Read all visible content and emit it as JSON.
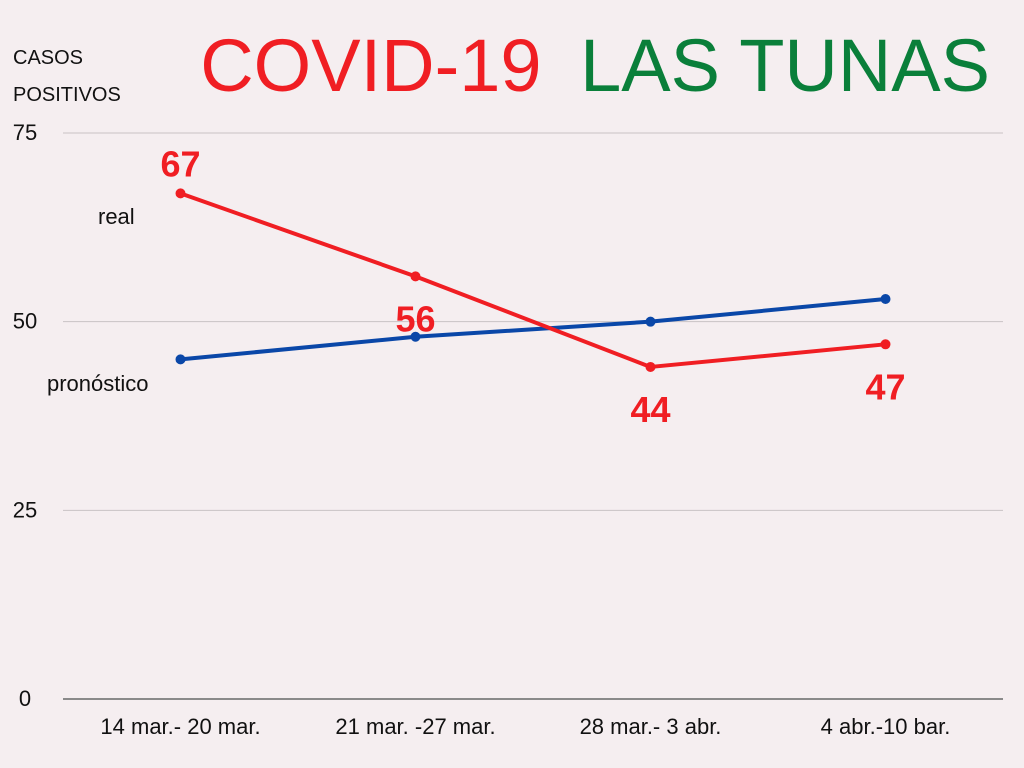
{
  "chart_data": {
    "type": "line",
    "title_part1": "COVID-19",
    "title_part2": "LAS TUNAS",
    "ylabel_line1": "CASOS",
    "ylabel_line2": "POSITIVOS",
    "categories": [
      "14 mar.- 20 mar.",
      "21 mar. -27 mar.",
      "28 mar.- 3 abr.",
      "4 abr.-10 bar."
    ],
    "ylim": [
      0,
      75
    ],
    "yticks": [
      0,
      25,
      50,
      75
    ],
    "grid": true,
    "series": [
      {
        "name": "real",
        "values": [
          67,
          56,
          44,
          47
        ],
        "color": "#f01e23",
        "show_labels": true
      },
      {
        "name": "pronóstico",
        "values": [
          45,
          48,
          50,
          53
        ],
        "color": "#0a47a8",
        "show_labels": false
      }
    ]
  },
  "colors": {
    "title_red": "#f01e23",
    "title_green": "#0a7f3a",
    "background": "#f5eef0"
  }
}
